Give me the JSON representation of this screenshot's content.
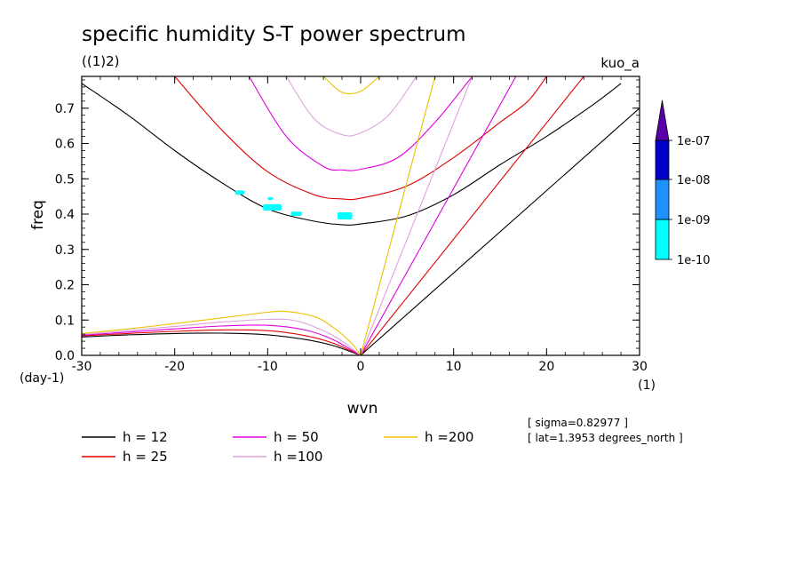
{
  "chart_data": {
    "type": "line",
    "title": "specific humidity S-T power spectrum",
    "subtitle": "((1)2)",
    "corner_label": "kuo_a",
    "xlabel": "wvn",
    "ylabel": "freq",
    "x_unit": "(1)",
    "y_unit": "(day-1)",
    "xlim": [
      -30,
      30
    ],
    "ylim": [
      0,
      0.79
    ],
    "xticks": [
      -30,
      -20,
      -10,
      0,
      10,
      20,
      30
    ],
    "xtick_labels": [
      "-30",
      "-20",
      "-10",
      "0",
      "10",
      "20",
      "30"
    ],
    "yticks": [
      0,
      0.1,
      0.2,
      0.3,
      0.4,
      0.5,
      0.6,
      0.7
    ],
    "ytick_labels": [
      "0.0",
      "0.1",
      "0.2",
      "0.3",
      "0.4",
      "0.5",
      "0.6",
      "0.7"
    ],
    "grid": false,
    "info_lines": [
      "[ sigma=0.82977 ]",
      "[ lat=1.3953 degrees_north ]"
    ],
    "series": [
      {
        "name": "h = 12",
        "color": "#000000",
        "kelvin": [
          [
            0,
            0
          ],
          [
            30,
            0.7
          ]
        ],
        "rossby": [
          [
            -30,
            0.052
          ],
          [
            -25,
            0.058
          ],
          [
            -20,
            0.062
          ],
          [
            -15,
            0.063
          ],
          [
            -10,
            0.058
          ],
          [
            -6,
            0.045
          ],
          [
            -3,
            0.028
          ],
          [
            0,
            0
          ]
        ],
        "ig": [
          [
            -30,
            0.77
          ],
          [
            -25,
            0.68
          ],
          [
            -20,
            0.58
          ],
          [
            -15,
            0.49
          ],
          [
            -10,
            0.415
          ],
          [
            -5,
            0.38
          ],
          [
            -2,
            0.37
          ],
          [
            0,
            0.372
          ],
          [
            5,
            0.395
          ],
          [
            10,
            0.455
          ],
          [
            15,
            0.54
          ],
          [
            20,
            0.62
          ],
          [
            25,
            0.71
          ],
          [
            28,
            0.77
          ]
        ]
      },
      {
        "name": "h = 25",
        "color": "#e00000",
        "kelvin": [
          [
            0,
            0
          ],
          [
            24,
            0.79
          ]
        ],
        "rossby": [
          [
            -30,
            0.055
          ],
          [
            -25,
            0.062
          ],
          [
            -20,
            0.068
          ],
          [
            -15,
            0.072
          ],
          [
            -10,
            0.07
          ],
          [
            -6,
            0.056
          ],
          [
            -3,
            0.035
          ],
          [
            0,
            0
          ]
        ],
        "ig": [
          [
            -20,
            0.79
          ],
          [
            -15,
            0.64
          ],
          [
            -10,
            0.52
          ],
          [
            -5,
            0.455
          ],
          [
            -2,
            0.443
          ],
          [
            0,
            0.445
          ],
          [
            5,
            0.48
          ],
          [
            10,
            0.56
          ],
          [
            15,
            0.66
          ],
          [
            18,
            0.72
          ],
          [
            20,
            0.79
          ]
        ]
      },
      {
        "name": "h = 50",
        "color": "#e000e0",
        "kelvin": [
          [
            0,
            0
          ],
          [
            16.7,
            0.79
          ]
        ],
        "rossby": [
          [
            -30,
            0.057
          ],
          [
            -25,
            0.066
          ],
          [
            -20,
            0.075
          ],
          [
            -15,
            0.083
          ],
          [
            -10,
            0.085
          ],
          [
            -6,
            0.072
          ],
          [
            -3,
            0.045
          ],
          [
            0,
            0
          ]
        ],
        "ig": [
          [
            -12,
            0.79
          ],
          [
            -8,
            0.62
          ],
          [
            -4,
            0.535
          ],
          [
            -2,
            0.525
          ],
          [
            0,
            0.527
          ],
          [
            4,
            0.56
          ],
          [
            8,
            0.66
          ],
          [
            12,
            0.79
          ]
        ]
      },
      {
        "name": "h =100",
        "color": "#dda0dd",
        "kelvin": [
          [
            0,
            0
          ],
          [
            12,
            0.79
          ]
        ],
        "rossby": [
          [
            -30,
            0.059
          ],
          [
            -25,
            0.07
          ],
          [
            -20,
            0.082
          ],
          [
            -15,
            0.094
          ],
          [
            -10,
            0.102
          ],
          [
            -7,
            0.098
          ],
          [
            -4,
            0.07
          ],
          [
            -2,
            0.04
          ],
          [
            0,
            0
          ]
        ],
        "ig": [
          [
            -8,
            0.79
          ],
          [
            -5,
            0.67
          ],
          [
            -2,
            0.625
          ],
          [
            0,
            0.63
          ],
          [
            3,
            0.68
          ],
          [
            6,
            0.79
          ]
        ]
      },
      {
        "name": "h =200",
        "color": "#f0c000",
        "kelvin": [
          [
            0,
            0
          ],
          [
            8,
            0.79
          ]
        ],
        "rossby": [
          [
            -30,
            0.062
          ],
          [
            -25,
            0.075
          ],
          [
            -20,
            0.09
          ],
          [
            -15,
            0.106
          ],
          [
            -10,
            0.122
          ],
          [
            -8,
            0.124
          ],
          [
            -5,
            0.11
          ],
          [
            -3,
            0.08
          ],
          [
            -1,
            0.035
          ],
          [
            0,
            0
          ]
        ],
        "ig": [
          [
            -4,
            0.79
          ],
          [
            -2,
            0.745
          ],
          [
            0,
            0.748
          ],
          [
            2,
            0.79
          ]
        ]
      }
    ],
    "filled_patches": [
      {
        "x": -13.5,
        "y": 0.455,
        "w": 1.0,
        "h": 0.012
      },
      {
        "x": -10.0,
        "y": 0.44,
        "w": 0.6,
        "h": 0.008
      },
      {
        "x": -10.5,
        "y": 0.41,
        "w": 2.0,
        "h": 0.018
      },
      {
        "x": -7.5,
        "y": 0.395,
        "w": 1.2,
        "h": 0.012
      },
      {
        "x": -2.5,
        "y": 0.385,
        "w": 1.6,
        "h": 0.02
      }
    ],
    "colorbar": {
      "labels": [
        "1e-10",
        "1e-09",
        "1e-08",
        "1e-07"
      ],
      "colors": [
        "#00ffff",
        "#1e90ff",
        "#0000cd",
        "#5a00a8"
      ]
    }
  }
}
